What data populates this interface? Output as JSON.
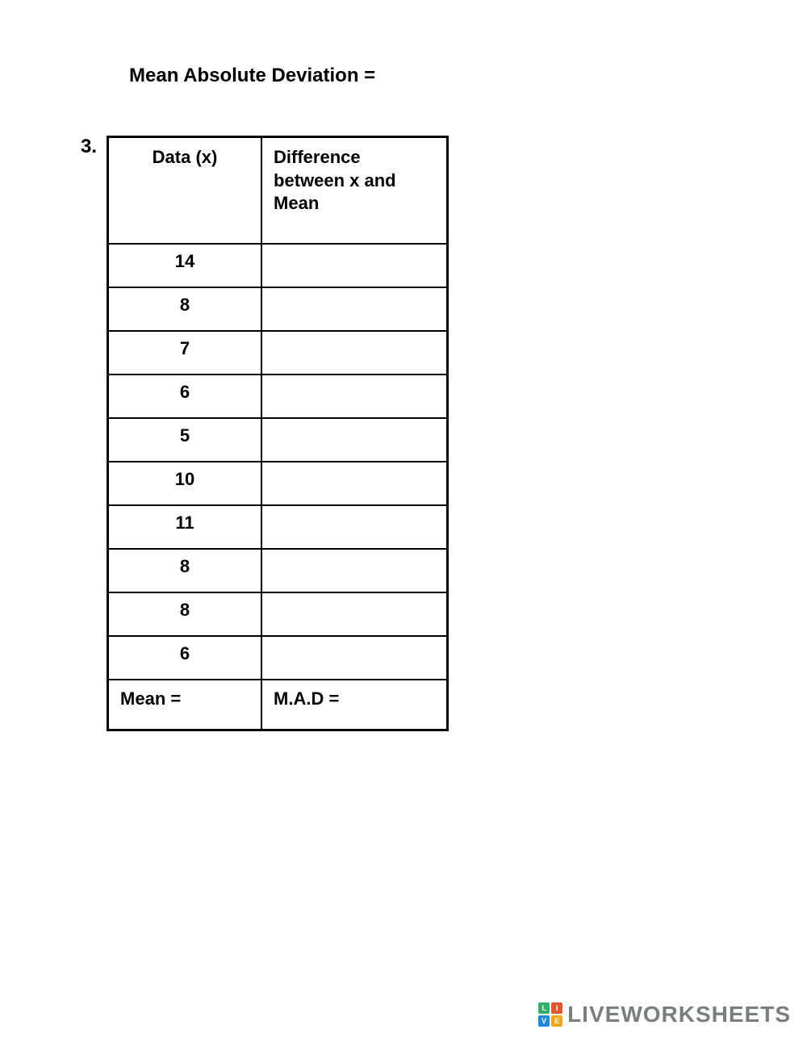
{
  "heading": "Mean Absolute Deviation =",
  "problem_number": "3.",
  "table": {
    "columns": [
      "Data (x)",
      "Difference between x and Mean"
    ],
    "rows": [
      {
        "data": "14",
        "diff": ""
      },
      {
        "data": "8",
        "diff": ""
      },
      {
        "data": "7",
        "diff": ""
      },
      {
        "data": "6",
        "diff": ""
      },
      {
        "data": "5",
        "diff": ""
      },
      {
        "data": "10",
        "diff": ""
      },
      {
        "data": "11",
        "diff": ""
      },
      {
        "data": "8",
        "diff": ""
      },
      {
        "data": "8",
        "diff": ""
      },
      {
        "data": "6",
        "diff": ""
      }
    ],
    "footer": {
      "left": "Mean =",
      "right": "M.A.D ="
    }
  },
  "watermark": {
    "text": "LIVEWORKSHEETS",
    "logo_letters": [
      "L",
      "I",
      "V",
      "E"
    ],
    "logo_colors": [
      "#34b06a",
      "#e4572e",
      "#1f8ad6",
      "#f2a71b"
    ]
  }
}
